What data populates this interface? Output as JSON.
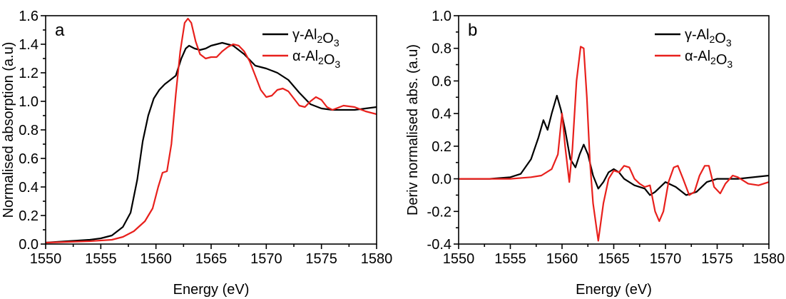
{
  "chart_data": [
    {
      "panel": "a",
      "type": "line",
      "xlabel": "Energy (eV)",
      "ylabel": "Normalised absorption (a.u)",
      "xlim": [
        1550,
        1580
      ],
      "ylim": [
        0.0,
        1.6
      ],
      "xticks": [
        1550,
        1555,
        1560,
        1565,
        1570,
        1575,
        1580
      ],
      "yticks": [
        0.0,
        0.2,
        0.4,
        0.6,
        0.8,
        1.0,
        1.2,
        1.4,
        1.6
      ],
      "ytick_labels": [
        "0.0",
        "0.2",
        "0.4",
        "0.6",
        "0.8",
        "1.0",
        "1.2",
        "1.4",
        "1.6"
      ],
      "legend_position": "top-right",
      "series": [
        {
          "name": "γ-Al2O3",
          "color": "#000000",
          "points": [
            [
              1550,
              0.01
            ],
            [
              1552,
              0.02
            ],
            [
              1554,
              0.03
            ],
            [
              1555,
              0.04
            ],
            [
              1556,
              0.06
            ],
            [
              1557,
              0.12
            ],
            [
              1557.7,
              0.22
            ],
            [
              1558.3,
              0.45
            ],
            [
              1558.8,
              0.72
            ],
            [
              1559.3,
              0.9
            ],
            [
              1559.8,
              1.02
            ],
            [
              1560.3,
              1.08
            ],
            [
              1560.8,
              1.12
            ],
            [
              1561.3,
              1.15
            ],
            [
              1561.8,
              1.18
            ],
            [
              1562.3,
              1.3
            ],
            [
              1562.7,
              1.37
            ],
            [
              1563.0,
              1.39
            ],
            [
              1563.5,
              1.37
            ],
            [
              1564.0,
              1.36
            ],
            [
              1564.5,
              1.37
            ],
            [
              1565.0,
              1.39
            ],
            [
              1566.0,
              1.41
            ],
            [
              1567.0,
              1.39
            ],
            [
              1568.0,
              1.33
            ],
            [
              1569.0,
              1.25
            ],
            [
              1570.0,
              1.23
            ],
            [
              1571.0,
              1.2
            ],
            [
              1572.0,
              1.15
            ],
            [
              1573.0,
              1.06
            ],
            [
              1574.0,
              0.98
            ],
            [
              1575.0,
              0.95
            ],
            [
              1576.0,
              0.94
            ],
            [
              1577.0,
              0.94
            ],
            [
              1578.0,
              0.94
            ],
            [
              1579.0,
              0.95
            ],
            [
              1580.0,
              0.96
            ]
          ]
        },
        {
          "name": "α-Al2O3",
          "color": "#e8201c",
          "points": [
            [
              1550,
              0.01
            ],
            [
              1552,
              0.015
            ],
            [
              1554,
              0.02
            ],
            [
              1556,
              0.03
            ],
            [
              1557,
              0.05
            ],
            [
              1558,
              0.09
            ],
            [
              1559,
              0.16
            ],
            [
              1559.7,
              0.25
            ],
            [
              1560.2,
              0.4
            ],
            [
              1560.6,
              0.5
            ],
            [
              1561.0,
              0.51
            ],
            [
              1561.4,
              0.7
            ],
            [
              1561.8,
              1.05
            ],
            [
              1562.2,
              1.35
            ],
            [
              1562.6,
              1.55
            ],
            [
              1562.9,
              1.58
            ],
            [
              1563.2,
              1.55
            ],
            [
              1563.6,
              1.42
            ],
            [
              1564.0,
              1.33
            ],
            [
              1564.5,
              1.3
            ],
            [
              1565.0,
              1.31
            ],
            [
              1565.5,
              1.31
            ],
            [
              1566.0,
              1.35
            ],
            [
              1566.5,
              1.38
            ],
            [
              1567.0,
              1.4
            ],
            [
              1567.5,
              1.39
            ],
            [
              1568.0,
              1.35
            ],
            [
              1568.5,
              1.28
            ],
            [
              1569.0,
              1.18
            ],
            [
              1569.5,
              1.08
            ],
            [
              1570.0,
              1.03
            ],
            [
              1570.5,
              1.04
            ],
            [
              1571.0,
              1.08
            ],
            [
              1571.5,
              1.09
            ],
            [
              1572.0,
              1.07
            ],
            [
              1572.5,
              1.02
            ],
            [
              1573.0,
              0.97
            ],
            [
              1573.5,
              0.96
            ],
            [
              1574.0,
              1.0
            ],
            [
              1574.5,
              1.03
            ],
            [
              1575.0,
              1.01
            ],
            [
              1575.5,
              0.96
            ],
            [
              1576.0,
              0.94
            ],
            [
              1577.0,
              0.97
            ],
            [
              1578.0,
              0.96
            ],
            [
              1579.0,
              0.93
            ],
            [
              1580.0,
              0.91
            ]
          ]
        }
      ]
    },
    {
      "panel": "b",
      "type": "line",
      "xlabel": "Energy (eV)",
      "ylabel": "Deriv normalised abs. (a.u)",
      "xlim": [
        1550,
        1580
      ],
      "ylim": [
        -0.4,
        1.0
      ],
      "xticks": [
        1550,
        1555,
        1560,
        1565,
        1570,
        1575,
        1580
      ],
      "yticks": [
        -0.4,
        -0.2,
        0.0,
        0.2,
        0.4,
        0.6,
        0.8,
        1.0
      ],
      "ytick_labels": [
        "-0.4",
        "-0.2",
        "0.0",
        "0.2",
        "0.4",
        "0.6",
        "0.8",
        "1.0"
      ],
      "legend_position": "top-right",
      "series": [
        {
          "name": "γ-Al2O3",
          "color": "#000000",
          "points": [
            [
              1550,
              0.0
            ],
            [
              1553,
              0.0
            ],
            [
              1555,
              0.01
            ],
            [
              1556,
              0.03
            ],
            [
              1557,
              0.12
            ],
            [
              1557.7,
              0.25
            ],
            [
              1558.2,
              0.36
            ],
            [
              1558.6,
              0.3
            ],
            [
              1559.0,
              0.4
            ],
            [
              1559.5,
              0.51
            ],
            [
              1559.9,
              0.42
            ],
            [
              1560.3,
              0.3
            ],
            [
              1560.8,
              0.12
            ],
            [
              1561.3,
              0.07
            ],
            [
              1561.7,
              0.15
            ],
            [
              1562.1,
              0.21
            ],
            [
              1562.5,
              0.15
            ],
            [
              1563.0,
              0.02
            ],
            [
              1563.5,
              -0.06
            ],
            [
              1564.0,
              -0.02
            ],
            [
              1564.5,
              0.04
            ],
            [
              1565.0,
              0.06
            ],
            [
              1565.5,
              0.04
            ],
            [
              1566.0,
              0.0
            ],
            [
              1567.0,
              -0.04
            ],
            [
              1568.0,
              -0.06
            ],
            [
              1568.5,
              -0.1
            ],
            [
              1569.0,
              -0.08
            ],
            [
              1570.0,
              -0.02
            ],
            [
              1571.0,
              -0.05
            ],
            [
              1572.0,
              -0.1
            ],
            [
              1573.0,
              -0.08
            ],
            [
              1574.0,
              -0.02
            ],
            [
              1575.0,
              0.0
            ],
            [
              1577.0,
              0.0
            ],
            [
              1580.0,
              0.02
            ]
          ]
        },
        {
          "name": "α-Al2O3",
          "color": "#e8201c",
          "points": [
            [
              1550,
              0.0
            ],
            [
              1555,
              0.0
            ],
            [
              1557,
              0.01
            ],
            [
              1558,
              0.02
            ],
            [
              1559,
              0.06
            ],
            [
              1559.6,
              0.15
            ],
            [
              1560.0,
              0.4
            ],
            [
              1560.3,
              0.2
            ],
            [
              1560.7,
              -0.02
            ],
            [
              1561.0,
              0.18
            ],
            [
              1561.4,
              0.6
            ],
            [
              1561.8,
              0.81
            ],
            [
              1562.1,
              0.8
            ],
            [
              1562.4,
              0.5
            ],
            [
              1562.7,
              0.1
            ],
            [
              1563.0,
              -0.15
            ],
            [
              1563.5,
              -0.38
            ],
            [
              1564.0,
              -0.15
            ],
            [
              1564.5,
              0.0
            ],
            [
              1565.0,
              0.05
            ],
            [
              1565.5,
              0.04
            ],
            [
              1566.0,
              0.08
            ],
            [
              1566.5,
              0.07
            ],
            [
              1567.0,
              0.0
            ],
            [
              1567.5,
              -0.03
            ],
            [
              1568.0,
              -0.05
            ],
            [
              1568.5,
              -0.04
            ],
            [
              1569.0,
              -0.2
            ],
            [
              1569.4,
              -0.26
            ],
            [
              1569.8,
              -0.2
            ],
            [
              1570.3,
              -0.02
            ],
            [
              1570.8,
              0.07
            ],
            [
              1571.2,
              0.08
            ],
            [
              1571.7,
              0.0
            ],
            [
              1572.3,
              -0.1
            ],
            [
              1572.8,
              -0.08
            ],
            [
              1573.3,
              0.02
            ],
            [
              1573.8,
              0.08
            ],
            [
              1574.2,
              0.08
            ],
            [
              1574.7,
              -0.05
            ],
            [
              1575.3,
              -0.09
            ],
            [
              1575.8,
              -0.03
            ],
            [
              1576.5,
              0.02
            ],
            [
              1577.0,
              0.01
            ],
            [
              1578.0,
              -0.03
            ],
            [
              1579.0,
              -0.04
            ],
            [
              1580.0,
              -0.02
            ]
          ]
        }
      ]
    }
  ]
}
